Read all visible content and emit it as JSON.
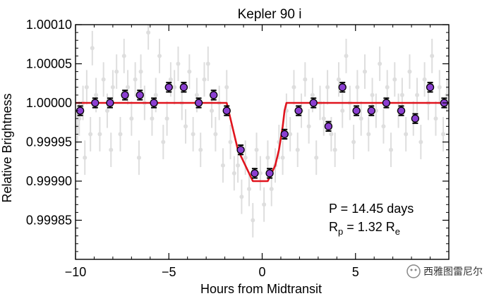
{
  "chart_data": {
    "type": "scatter",
    "title": "Kepler 90 i",
    "xlabel": "Hours from Midtransit",
    "ylabel": "Relative Brightness",
    "xlim": [
      -10,
      10
    ],
    "ylim": [
      0.9998,
      1.0001
    ],
    "xticks": [
      -10,
      -5,
      0,
      5
    ],
    "xtick_labels": [
      "−10",
      "−5",
      "0",
      "5"
    ],
    "yticks": [
      0.99985,
      0.9999,
      0.99995,
      1.0,
      1.00005,
      1.0001
    ],
    "ytick_labels": [
      "0.99985",
      "0.99990",
      "0.99995",
      "1.00000",
      "1.00005",
      "1.00010"
    ],
    "grid": false,
    "series": [
      {
        "name": "binned data",
        "style": "points-with-errorbars",
        "color": "#8b3fd1",
        "x": [
          -9.75,
          -8.95,
          -8.15,
          -7.35,
          -6.55,
          -5.8,
          -5.0,
          -4.2,
          -3.4,
          -2.6,
          -1.9,
          -1.15,
          -0.4,
          0.4,
          1.2,
          1.95,
          2.75,
          3.55,
          4.3,
          5.05,
          5.85,
          6.65,
          7.45,
          8.2,
          9.0,
          9.75
        ],
        "y": [
          0.99999,
          1.0,
          1.0,
          1.00001,
          1.00001,
          1.0,
          1.00002,
          1.00002,
          1.0,
          1.00001,
          0.99999,
          0.99994,
          0.99991,
          0.99991,
          0.99996,
          0.99999,
          1.0,
          0.99997,
          1.00002,
          0.99999,
          0.99999,
          1.0,
          0.99999,
          0.99998,
          1.00002,
          1.0
        ],
        "error": 6e-06
      },
      {
        "name": "transit model",
        "style": "line",
        "color": "#e0141e",
        "x": [
          -10,
          -1.9,
          -1.7,
          -1.5,
          -1.3,
          -1.1,
          -0.9,
          -0.7,
          -0.5,
          -0.3,
          0,
          0.3,
          0.5,
          0.7,
          0.9,
          1.1,
          1.2,
          1.3,
          1.4,
          10
        ],
        "y": [
          1.0,
          1.0,
          0.99998,
          0.99996,
          0.99994,
          0.99993,
          0.99992,
          0.99991,
          0.9999,
          0.9999,
          0.9999,
          0.9999,
          0.99991,
          0.99992,
          0.99994,
          0.99997,
          0.99999,
          1.0,
          1.0,
          1.0
        ]
      }
    ],
    "unbinned_color": "#dedede",
    "unbinned_error": 2.2e-05,
    "unbinned": [
      [
        -9.9,
        0.99997
      ],
      [
        -9.8,
        0.99998
      ],
      [
        -9.6,
        1.0
      ],
      [
        -9.5,
        0.99993
      ],
      [
        -9.4,
        1.00002
      ],
      [
        -9.2,
        0.99996
      ],
      [
        -9.1,
        1.00007
      ],
      [
        -8.9,
        1.00001
      ],
      [
        -8.7,
        0.99996
      ],
      [
        -8.5,
        1.00003
      ],
      [
        -8.3,
        0.99999
      ],
      [
        -8.1,
        0.99994
      ],
      [
        -8.0,
        1.00002
      ],
      [
        -7.8,
        1.00004
      ],
      [
        -7.6,
        0.99996
      ],
      [
        -7.4,
        1.00006
      ],
      [
        -7.2,
        1.00002
      ],
      [
        -7.0,
        0.99998
      ],
      [
        -6.8,
        1.00003
      ],
      [
        -6.6,
        0.99993
      ],
      [
        -6.5,
        1.00004
      ],
      [
        -6.3,
        1.0
      ],
      [
        -6.1,
        1.00009
      ],
      [
        -5.9,
        0.99998
      ],
      [
        -5.7,
        1.00001
      ],
      [
        -5.5,
        1.00006
      ],
      [
        -5.3,
        0.99995
      ],
      [
        -5.1,
        0.99998
      ],
      [
        -4.9,
        1.00003
      ],
      [
        -4.7,
        1.00002
      ],
      [
        -4.5,
        1.00005
      ],
      [
        -4.3,
        1.0
      ],
      [
        -4.1,
        0.99997
      ],
      [
        -3.9,
        1.00004
      ],
      [
        -3.7,
        0.99996
      ],
      [
        -3.5,
        1.00001
      ],
      [
        -3.3,
        0.99994
      ],
      [
        -3.1,
        1.00003
      ],
      [
        -2.9,
        1.00005
      ],
      [
        -2.7,
        0.99999
      ],
      [
        -2.5,
        0.99996
      ],
      [
        -2.3,
        1.0
      ],
      [
        -2.1,
        0.99992
      ],
      [
        -1.9,
        1.00002
      ],
      [
        -1.7,
        0.99995
      ],
      [
        -1.5,
        0.99991
      ],
      [
        -1.3,
        0.99992
      ],
      [
        -1.1,
        0.99988
      ],
      [
        -0.9,
        0.99993
      ],
      [
        -0.7,
        0.99989
      ],
      [
        -0.5,
        0.99985
      ],
      [
        -0.3,
        0.99994
      ],
      [
        -0.1,
        0.99991
      ],
      [
        0.1,
        0.99987
      ],
      [
        0.3,
        0.99993
      ],
      [
        0.5,
        0.99989
      ],
      [
        0.7,
        0.99992
      ],
      [
        0.9,
        0.99995
      ],
      [
        1.1,
        0.99993
      ],
      [
        1.3,
        0.99999
      ],
      [
        1.5,
        0.99996
      ],
      [
        1.7,
        1.00002
      ],
      [
        1.9,
        0.99994
      ],
      [
        2.1,
        0.99999
      ],
      [
        2.3,
        1.00003
      ],
      [
        2.5,
        0.99997
      ],
      [
        2.7,
        1.00001
      ],
      [
        2.9,
        0.99993
      ],
      [
        3.1,
        1.0
      ],
      [
        3.3,
        0.99998
      ],
      [
        3.5,
        1.00002
      ],
      [
        3.7,
        0.99996
      ],
      [
        3.9,
        0.99994
      ],
      [
        4.1,
        1.00003
      ],
      [
        4.3,
        0.99999
      ],
      [
        4.5,
        1.00006
      ],
      [
        4.7,
        1.0
      ],
      [
        4.9,
        0.99995
      ],
      [
        5.1,
        1.00002
      ],
      [
        5.3,
        0.99998
      ],
      [
        5.5,
        1.00004
      ],
      [
        5.7,
        0.99996
      ],
      [
        5.9,
        1.00001
      ],
      [
        6.1,
        0.99999
      ],
      [
        6.3,
        1.00005
      ],
      [
        6.5,
        0.99997
      ],
      [
        6.7,
        1.00002
      ],
      [
        6.9,
        0.99994
      ],
      [
        7.1,
        1.00003
      ],
      [
        7.3,
        0.99999
      ],
      [
        7.5,
        1.00001
      ],
      [
        7.7,
        0.99996
      ],
      [
        7.9,
        1.00004
      ],
      [
        8.1,
        0.99998
      ],
      [
        8.3,
        1.00001
      ],
      [
        8.5,
        0.99995
      ],
      [
        8.7,
        1.00003
      ],
      [
        8.9,
        1.0
      ],
      [
        9.1,
        1.00006
      ],
      [
        9.3,
        0.99998
      ],
      [
        9.5,
        1.00002
      ],
      [
        9.7,
        0.99996
      ],
      [
        9.9,
        1.00001
      ]
    ],
    "annotations": {
      "period": "P = 14.45 days",
      "radius_main": "R",
      "radius_sub": "p",
      "radius_rest": " = 1.32 R",
      "radius_unit_sub": "e"
    }
  },
  "watermark": {
    "text": "西雅图雷尼尔"
  }
}
